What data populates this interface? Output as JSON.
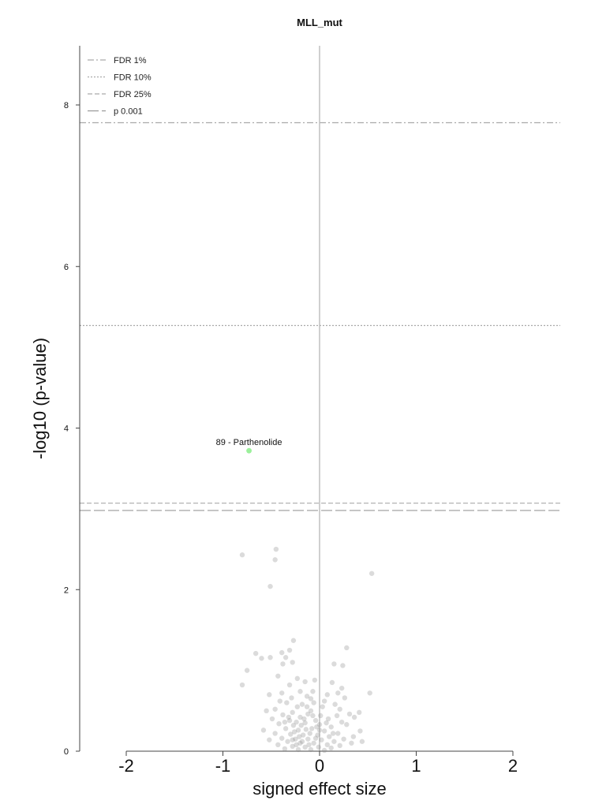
{
  "chart_data": {
    "type": "scatter",
    "title": "MLL_mut",
    "xlabel": "signed effect size",
    "ylabel": "-log10 (p-value)",
    "xlim": [
      -2.5,
      2.5
    ],
    "ylim": [
      0,
      8.8
    ],
    "x_ticks": [
      "-2",
      "-1",
      "0",
      "1",
      "2"
    ],
    "x_tick_values": [
      -2,
      -1,
      0,
      1,
      2
    ],
    "y_ticks": [
      "0",
      "2",
      "4",
      "6",
      "8"
    ],
    "y_tick_values": [
      0,
      2,
      4,
      6,
      8
    ],
    "legend_position": "top-left",
    "thresholds": [
      {
        "label": "FDR 1%",
        "y": 7.78,
        "style": "dashdot",
        "color": "#aaaaaa"
      },
      {
        "label": "FDR 10%",
        "y": 5.27,
        "style": "dotted",
        "color": "#aaaaaa"
      },
      {
        "label": "FDR 25%",
        "y": 3.07,
        "style": "dashed",
        "color": "#aaaaaa"
      },
      {
        "label": "p 0.001",
        "y": 2.98,
        "style": "longdash",
        "color": "#999999"
      }
    ],
    "zero_line": {
      "x": 0,
      "color": "#bbbbbb"
    },
    "highlight": {
      "x": -0.73,
      "y": 3.72,
      "label": "89 - Parthenolide",
      "color": "#90ee90"
    },
    "point_color": "#888888",
    "points": [
      [
        -0.8,
        2.43
      ],
      [
        -0.45,
        2.5
      ],
      [
        -0.46,
        2.37
      ],
      [
        -0.51,
        2.04
      ],
      [
        0.54,
        2.2
      ],
      [
        -0.27,
        1.37
      ],
      [
        -0.66,
        1.21
      ],
      [
        -0.39,
        1.22
      ],
      [
        -0.6,
        1.15
      ],
      [
        -0.35,
        1.16
      ],
      [
        -0.31,
        1.25
      ],
      [
        0.28,
        1.28
      ],
      [
        -0.51,
        1.16
      ],
      [
        0.15,
        1.08
      ],
      [
        0.24,
        1.06
      ],
      [
        -0.38,
        1.08
      ],
      [
        -0.75,
        1.0
      ],
      [
        -0.28,
        1.1
      ],
      [
        0.13,
        0.85
      ],
      [
        -0.05,
        0.88
      ],
      [
        -0.8,
        0.82
      ],
      [
        0.23,
        0.78
      ],
      [
        -0.43,
        0.93
      ],
      [
        -0.23,
        0.9
      ],
      [
        -0.31,
        0.82
      ],
      [
        -0.15,
        0.86
      ],
      [
        0.52,
        0.72
      ],
      [
        -0.07,
        0.74
      ],
      [
        0.08,
        0.7
      ],
      [
        0.19,
        0.72
      ],
      [
        -0.2,
        0.74
      ],
      [
        -0.39,
        0.72
      ],
      [
        -0.52,
        0.7
      ],
      [
        -0.29,
        0.66
      ],
      [
        0.26,
        0.66
      ],
      [
        -0.13,
        0.68
      ],
      [
        0.05,
        0.62
      ],
      [
        -0.06,
        0.6
      ],
      [
        -0.34,
        0.6
      ],
      [
        -0.46,
        0.52
      ],
      [
        -0.55,
        0.5
      ],
      [
        -0.23,
        0.55
      ],
      [
        -0.18,
        0.58
      ],
      [
        0.03,
        0.55
      ],
      [
        0.16,
        0.58
      ],
      [
        -0.09,
        0.5
      ],
      [
        -0.28,
        0.48
      ],
      [
        0.31,
        0.46
      ],
      [
        -0.38,
        0.45
      ],
      [
        -0.12,
        0.46
      ],
      [
        0.01,
        0.44
      ],
      [
        0.18,
        0.44
      ],
      [
        0.41,
        0.48
      ],
      [
        -0.49,
        0.4
      ],
      [
        -0.31,
        0.38
      ],
      [
        -0.2,
        0.42
      ],
      [
        -0.04,
        0.38
      ],
      [
        0.09,
        0.4
      ],
      [
        0.23,
        0.36
      ],
      [
        -0.42,
        0.34
      ],
      [
        -0.27,
        0.32
      ],
      [
        -0.15,
        0.35
      ],
      [
        0.0,
        0.33
      ],
      [
        0.12,
        0.3
      ],
      [
        0.28,
        0.33
      ],
      [
        -0.35,
        0.28
      ],
      [
        -0.22,
        0.26
      ],
      [
        -0.08,
        0.28
      ],
      [
        0.05,
        0.25
      ],
      [
        0.19,
        0.22
      ],
      [
        0.42,
        0.25
      ],
      [
        -0.46,
        0.22
      ],
      [
        -0.3,
        0.21
      ],
      [
        -0.17,
        0.2
      ],
      [
        -0.02,
        0.2
      ],
      [
        0.1,
        0.18
      ],
      [
        0.25,
        0.15
      ],
      [
        -0.39,
        0.16
      ],
      [
        -0.25,
        0.15
      ],
      [
        -0.12,
        0.15
      ],
      [
        0.02,
        0.14
      ],
      [
        0.15,
        0.12
      ],
      [
        0.35,
        0.18
      ],
      [
        -0.33,
        0.12
      ],
      [
        -0.2,
        0.1
      ],
      [
        -0.06,
        0.1
      ],
      [
        0.08,
        0.08
      ],
      [
        0.21,
        0.07
      ],
      [
        -0.43,
        0.08
      ],
      [
        -0.28,
        0.06
      ],
      [
        -0.15,
        0.05
      ],
      [
        -0.01,
        0.05
      ],
      [
        0.12,
        0.04
      ],
      [
        -0.36,
        0.03
      ],
      [
        -0.22,
        0.02
      ],
      [
        -0.09,
        0.02
      ],
      [
        0.05,
        0.01
      ],
      [
        -0.18,
        0.12
      ],
      [
        -0.26,
        0.24
      ],
      [
        -0.1,
        0.22
      ],
      [
        -0.32,
        0.42
      ],
      [
        -0.24,
        0.36
      ],
      [
        -0.14,
        0.27
      ],
      [
        -0.04,
        0.16
      ],
      [
        -0.19,
        0.32
      ],
      [
        -0.28,
        0.14
      ],
      [
        -0.11,
        0.08
      ],
      [
        -0.24,
        0.08
      ],
      [
        0.0,
        0.26
      ],
      [
        -0.16,
        0.4
      ],
      [
        0.07,
        0.35
      ],
      [
        -0.07,
        0.44
      ],
      [
        -0.36,
        0.36
      ],
      [
        0.14,
        0.22
      ],
      [
        -0.21,
        0.18
      ],
      [
        0.33,
        0.1
      ],
      [
        0.36,
        0.42
      ],
      [
        -0.58,
        0.26
      ],
      [
        -0.52,
        0.14
      ],
      [
        0.44,
        0.12
      ],
      [
        -0.03,
        0.3
      ],
      [
        -0.13,
        0.55
      ],
      [
        0.21,
        0.52
      ],
      [
        -0.41,
        0.62
      ],
      [
        -0.09,
        0.65
      ]
    ]
  }
}
